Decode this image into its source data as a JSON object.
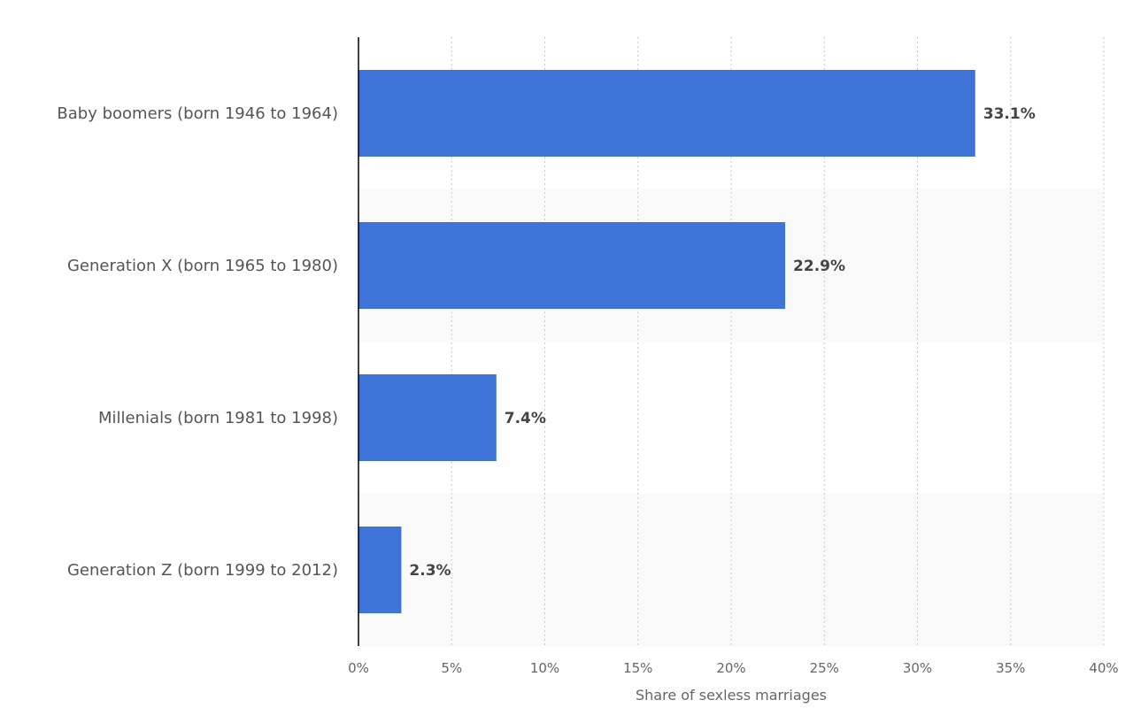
{
  "chart_data": {
    "type": "bar",
    "orientation": "horizontal",
    "categories": [
      "Baby boomers (born 1946 to 1964)",
      "Generation X (born 1965 to 1980)",
      "Millenials (born 1981 to 1998)",
      "Generation Z (born 1999 to 2012)"
    ],
    "values": [
      33.1,
      22.9,
      7.4,
      2.3
    ],
    "value_labels": [
      "33.1%",
      "22.9%",
      "7.4%",
      "2.3%"
    ],
    "xlabel": "Share of sexless marriages",
    "ylabel": "",
    "xlim": [
      0,
      40
    ],
    "x_ticks": [
      0,
      5,
      10,
      15,
      20,
      25,
      30,
      35,
      40
    ],
    "x_tick_labels": [
      "0%",
      "5%",
      "10%",
      "15%",
      "20%",
      "25%",
      "30%",
      "35%",
      "40%"
    ],
    "grid": "vertical dotted",
    "alternating_row_bands": true,
    "colors": {
      "bar": "#3e73d8",
      "band": "#f9f9f9",
      "grid": "#c8c8c8",
      "axis": "#000000"
    }
  }
}
